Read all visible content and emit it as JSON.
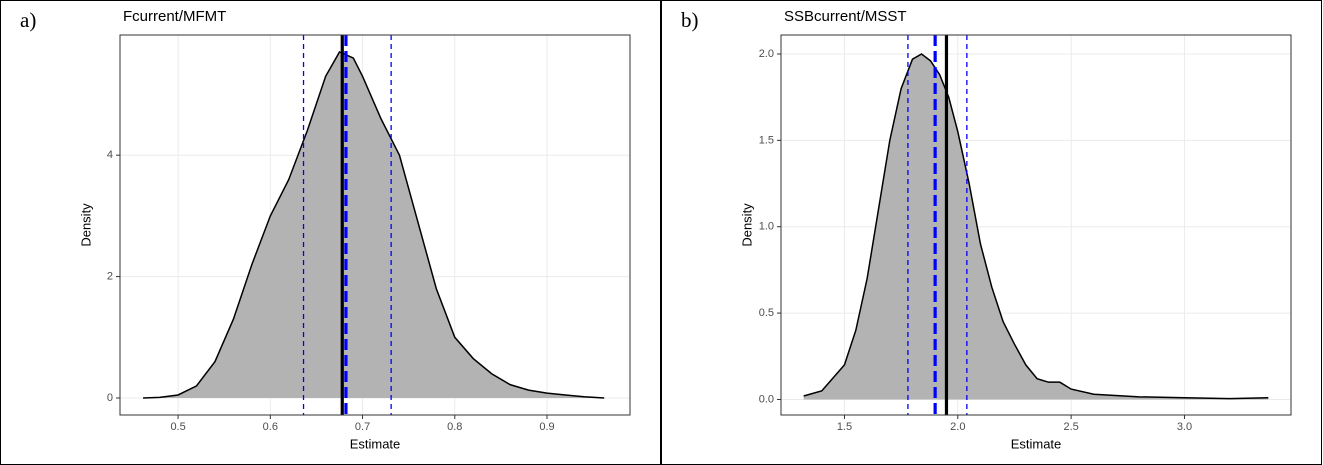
{
  "chart_data": [
    {
      "type": "density",
      "panel_label": "a)",
      "title": "Fcurrent/MFMT",
      "xlabel": "Estimate",
      "ylabel": "Density",
      "x": [
        0.462,
        0.48,
        0.5,
        0.52,
        0.54,
        0.56,
        0.58,
        0.6,
        0.62,
        0.64,
        0.66,
        0.675,
        0.69,
        0.7,
        0.72,
        0.74,
        0.76,
        0.78,
        0.8,
        0.82,
        0.84,
        0.86,
        0.88,
        0.9,
        0.92,
        0.94,
        0.962
      ],
      "density": [
        0,
        0.01,
        0.05,
        0.2,
        0.6,
        1.3,
        2.2,
        3.0,
        3.6,
        4.4,
        5.3,
        5.7,
        5.6,
        5.3,
        4.6,
        4.0,
        2.9,
        1.8,
        1.0,
        0.65,
        0.4,
        0.22,
        0.13,
        0.08,
        0.05,
        0.02,
        0
      ],
      "fill": "#b3b3b3",
      "line_color": "#000000",
      "vlines": [
        {
          "value": 0.636,
          "color": "#0000ff",
          "linetype": "dashed",
          "weight": "thin"
        },
        {
          "value": 0.731,
          "color": "#0000ff",
          "linetype": "dashed",
          "weight": "thin"
        },
        {
          "value": 0.682,
          "color": "#0000ff",
          "linetype": "dashed",
          "weight": "thick"
        },
        {
          "value": 0.678,
          "color": "#000000",
          "linetype": "solid",
          "weight": "thick"
        }
      ],
      "xlim": [
        0.437,
        0.99
      ],
      "ylim": [
        -0.28,
        5.98
      ],
      "xticks": [
        0.5,
        0.6,
        0.7,
        0.8,
        0.9
      ],
      "yticks": [
        0,
        2,
        4
      ],
      "grid": true
    },
    {
      "type": "density",
      "panel_label": "b)",
      "title": "SSBcurrent/MSST",
      "xlabel": "Estimate",
      "ylabel": "Density",
      "x": [
        1.32,
        1.4,
        1.5,
        1.55,
        1.6,
        1.65,
        1.7,
        1.75,
        1.8,
        1.84,
        1.88,
        1.92,
        1.96,
        2.0,
        2.05,
        2.1,
        2.15,
        2.2,
        2.25,
        2.3,
        2.35,
        2.4,
        2.45,
        2.5,
        2.6,
        2.8,
        3.0,
        3.2,
        3.37
      ],
      "density": [
        0.02,
        0.05,
        0.2,
        0.4,
        0.7,
        1.1,
        1.5,
        1.8,
        1.97,
        2.0,
        1.96,
        1.88,
        1.75,
        1.55,
        1.25,
        0.9,
        0.65,
        0.45,
        0.32,
        0.2,
        0.12,
        0.1,
        0.1,
        0.06,
        0.03,
        0.015,
        0.01,
        0.005,
        0.01
      ],
      "fill": "#b3b3b3",
      "line_color": "#000000",
      "vlines": [
        {
          "value": 1.78,
          "color": "#0000ff",
          "linetype": "dashed",
          "weight": "thin"
        },
        {
          "value": 2.04,
          "color": "#0000ff",
          "linetype": "dashed",
          "weight": "thin"
        },
        {
          "value": 1.9,
          "color": "#0000ff",
          "linetype": "dashed",
          "weight": "thick"
        },
        {
          "value": 1.95,
          "color": "#000000",
          "linetype": "solid",
          "weight": "thick"
        }
      ],
      "xlim": [
        1.22,
        3.47
      ],
      "ylim": [
        -0.09,
        2.11
      ],
      "xticks": [
        1.5,
        {
          "value": 2.0,
          "label": "2.0"
        },
        2.5,
        {
          "value": 3.0,
          "label": "3.0"
        }
      ],
      "yticks": [
        {
          "value": 0,
          "label": "0.0"
        },
        0.5,
        {
          "value": 1,
          "label": "1.0"
        },
        1.5,
        {
          "value": 2,
          "label": "2.0"
        }
      ],
      "grid": true
    }
  ]
}
